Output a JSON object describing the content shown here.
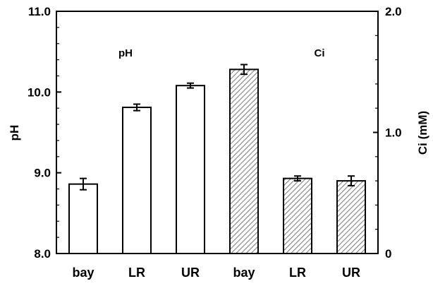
{
  "chart_data": {
    "type": "bar",
    "categories": [
      "bay",
      "LR",
      "UR",
      "bay",
      "LR",
      "UR"
    ],
    "series": [
      {
        "axis": "left",
        "pattern": "open",
        "values": [
          8.86,
          9.81,
          10.08,
          null,
          null,
          null
        ],
        "errors": [
          0.07,
          0.04,
          0.03,
          null,
          null,
          null
        ]
      },
      {
        "axis": "right",
        "pattern": "hatched",
        "values": [
          null,
          null,
          null,
          1.52,
          0.62,
          0.6
        ],
        "errors": [
          null,
          null,
          null,
          0.04,
          0.02,
          0.04
        ]
      }
    ],
    "left_axis": {
      "label": "pH",
      "ylim": [
        8.0,
        11.0
      ],
      "ticks": [
        8.0,
        9.0,
        10.0,
        11.0
      ],
      "tick_labels": [
        "8.0",
        "9.0",
        "10.0",
        "11.0"
      ]
    },
    "right_axis": {
      "label": "Ci (mM)",
      "ylim": [
        0,
        2.0
      ],
      "ticks": [
        0,
        1.0,
        2.0
      ],
      "tick_labels": [
        "0",
        "1.0",
        "2.0"
      ]
    },
    "annotations": [
      {
        "text": "pH",
        "near": "left group"
      },
      {
        "text": "Ci",
        "near": "right group"
      }
    ],
    "grid": false,
    "legend": "none",
    "colors": {
      "bar_fill_open": "#ffffff",
      "bar_stroke": "#000000",
      "hatch": "#555555"
    }
  }
}
